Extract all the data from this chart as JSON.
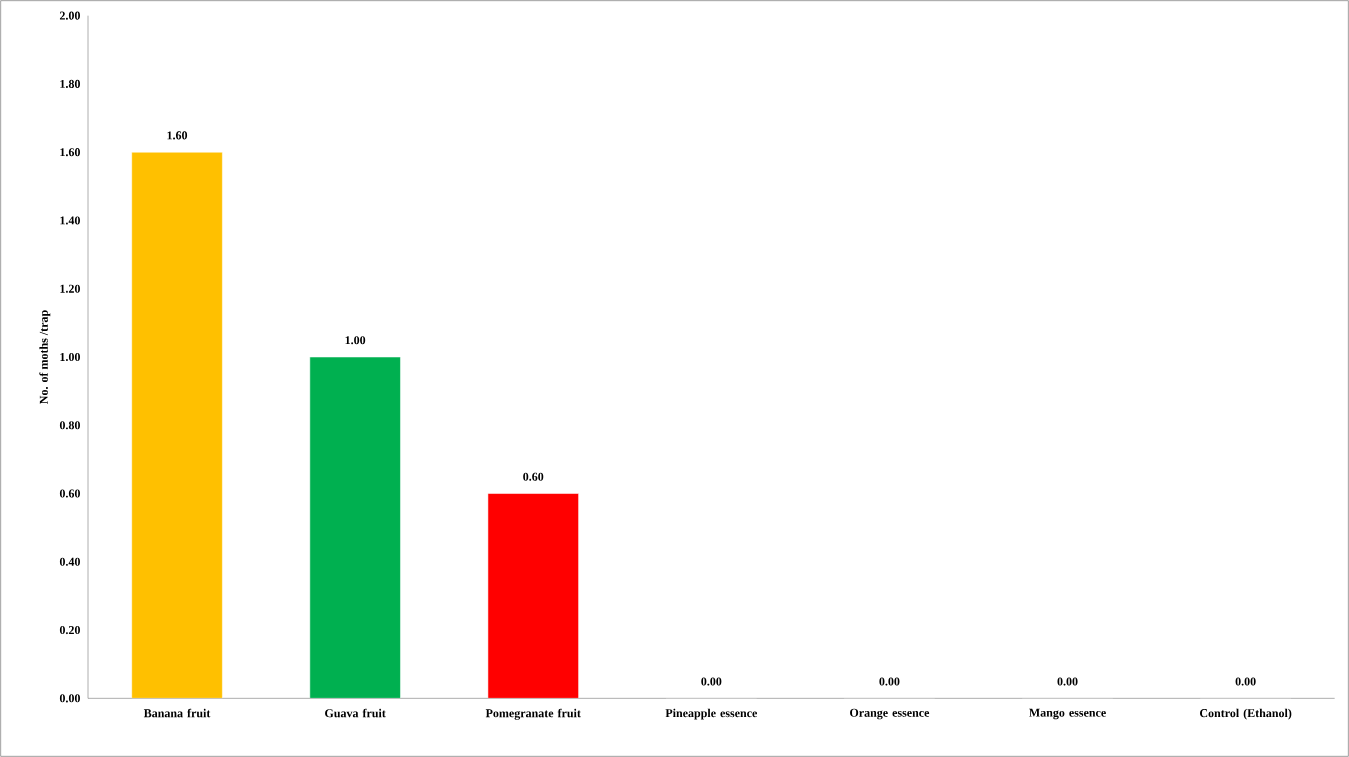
{
  "chart_data": {
    "type": "bar",
    "ylabel": "No. of moths /trap",
    "categories": [
      "Banana fruit",
      "Guava fruit",
      "Pomegranate fruit",
      "Pineapple essence",
      "Orange essence",
      "Mango essence",
      "Control (Ethanol)"
    ],
    "values": [
      1.6,
      1.0,
      0.6,
      0,
      0,
      0,
      0
    ],
    "value_labels": [
      "1.60",
      "1.00",
      "0.60",
      "0.00",
      "0.00",
      "0.00",
      "0.00"
    ],
    "colors": [
      "#ffc000",
      "#00b050",
      "#ff0000",
      "#6b8e23",
      "#7f3f00",
      "#808000",
      "#000000"
    ],
    "ylim": [
      0,
      2
    ],
    "yticks": [
      {
        "value": 0,
        "label": "0.00"
      },
      {
        "value": 0.2,
        "label": "0.20"
      },
      {
        "value": 0.4,
        "label": "0.40"
      },
      {
        "value": 0.6,
        "label": "0.60"
      },
      {
        "value": 0.8,
        "label": "0.80"
      },
      {
        "value": 1.0,
        "label": "1.00"
      },
      {
        "value": 1.2,
        "label": "1.20"
      },
      {
        "value": 1.4,
        "label": "1.40"
      },
      {
        "value": 1.6,
        "label": "1.60"
      },
      {
        "value": 1.8,
        "label": "1.80"
      },
      {
        "value": 2.0,
        "label": "2.00"
      }
    ],
    "grid": false
  }
}
